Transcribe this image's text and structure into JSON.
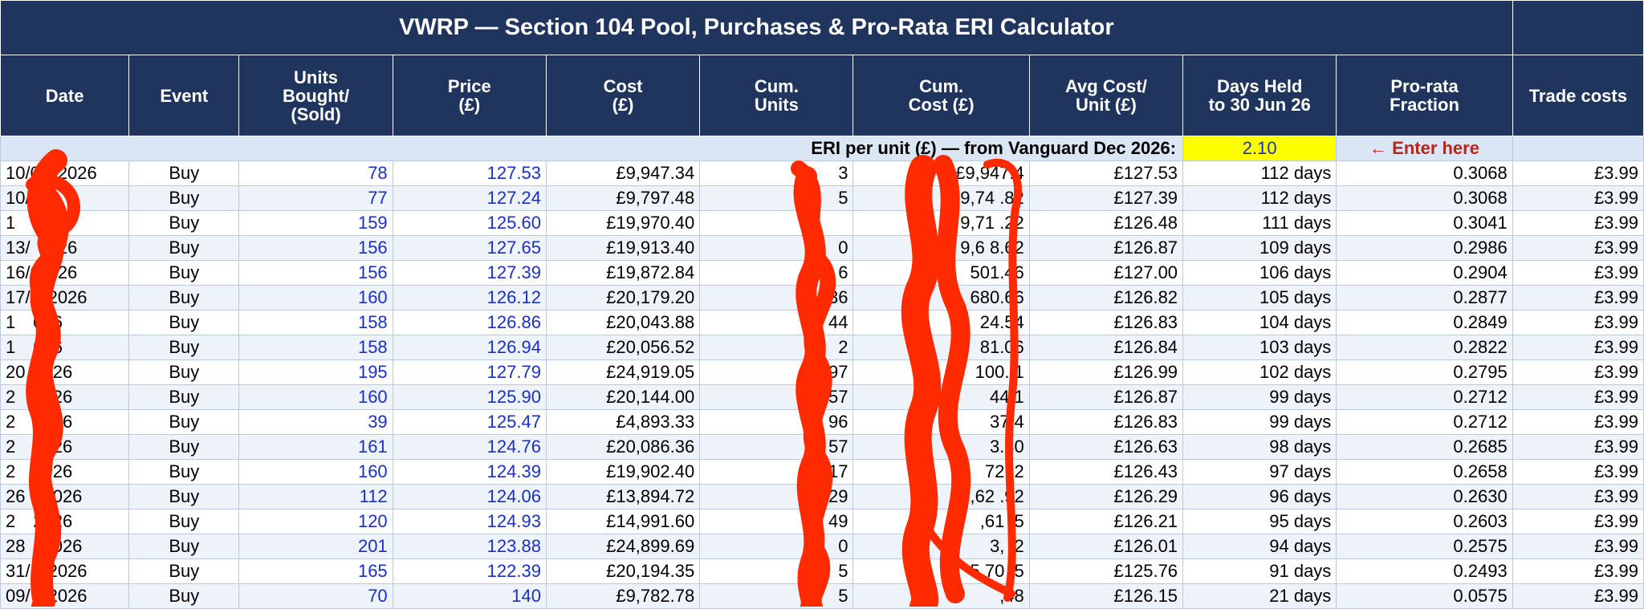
{
  "title": "VWRP — Section 104 Pool, Purchases & Pro-Rata ERI Calculator",
  "headers": [
    "Date",
    "Event",
    "Units\nBought/\n(Sold)",
    "Price\n(£)",
    "Cost\n(£)",
    "Cum.\nUnits",
    "Cum.\nCost (£)",
    "Avg Cost/\nUnit (£)",
    "Days Held\nto 30 Jun 26",
    "Pro-rata\nFraction",
    "Trade costs"
  ],
  "eri": {
    "label": "ERI per unit (£) — from Vanguard Dec 2026:",
    "value": "2.10",
    "hint": "← Enter here"
  },
  "rows": [
    {
      "date": "10/0",
      "date_tail": "2026",
      "event": "Buy",
      "units": "78",
      "price": "127.53",
      "cost": "£9,947.34",
      "cum_units": "3",
      "cum_cost": "£9,947.4",
      "avg": "£127.53",
      "days": "112 days",
      "frac": "0.3068",
      "trade": "£3.99"
    },
    {
      "date": "10/",
      "date_tail": "6",
      "event": "Buy",
      "units": "77",
      "price": "127.24",
      "cost": "£9,797.48",
      "cum_units": "5",
      "cum_cost": "9,74 .82",
      "avg": "£127.39",
      "days": "112 days",
      "frac": "0.3068",
      "trade": "£3.99"
    },
    {
      "date": "1",
      "date_tail": "026",
      "event": "Buy",
      "units": "159",
      "price": "125.60",
      "cost": "£19,970.40",
      "cum_units": "",
      "cum_cost": "9,71 .22",
      "avg": "£126.48",
      "days": "111 days",
      "frac": "0.3041",
      "trade": "£3.99"
    },
    {
      "date": "13/",
      "date_tail": "026",
      "event": "Buy",
      "units": "156",
      "price": "127.65",
      "cost": "£19,913.40",
      "cum_units": "0",
      "cum_cost": "9,6 8.62",
      "avg": "£126.87",
      "days": "109 days",
      "frac": "0.2986",
      "trade": "£3.99"
    },
    {
      "date": "16/0",
      "date_tail": "26",
      "event": "Buy",
      "units": "156",
      "price": "127.39",
      "cost": "£19,872.84",
      "cum_units": "6",
      "cum_cost": "501.46",
      "avg": "£127.00",
      "days": "106 days",
      "frac": "0.2904",
      "trade": "£3.99"
    },
    {
      "date": "17/",
      "date_tail": "2026",
      "event": "Buy",
      "units": "160",
      "price": "126.12",
      "cost": "£20,179.20",
      "cum_units": "36",
      "cum_cost": "680.66",
      "avg": "£126.82",
      "days": "105 days",
      "frac": "0.2877",
      "trade": "£3.99"
    },
    {
      "date": "1",
      "date_tail": "026",
      "event": "Buy",
      "units": "158",
      "price": "126.86",
      "cost": "£20,043.88",
      "cum_units": "44",
      "cum_cost": "24.54",
      "avg": "£126.83",
      "days": "104 days",
      "frac": "0.2849",
      "trade": "£3.99"
    },
    {
      "date": "1",
      "date_tail": "026",
      "event": "Buy",
      "units": "158",
      "price": "126.94",
      "cost": "£20,056.52",
      "cum_units": "2",
      "cum_cost": "81.06",
      "avg": "£126.84",
      "days": "103 days",
      "frac": "0.2822",
      "trade": "£3.99"
    },
    {
      "date": "20",
      "date_tail": "026",
      "event": "Buy",
      "units": "195",
      "price": "127.79",
      "cost": "£24,919.05",
      "cum_units": "97",
      "cum_cost": "100. 1",
      "avg": "£126.99",
      "days": "102 days",
      "frac": "0.2795",
      "trade": "£3.99"
    },
    {
      "date": "2",
      "date_tail": "2026",
      "event": "Buy",
      "units": "160",
      "price": "125.90",
      "cost": "£20,144.00",
      "cum_units": "57",
      "cum_cost": "44.1",
      "avg": "£126.87",
      "days": "99 days",
      "frac": "0.2712",
      "trade": "£3.99"
    },
    {
      "date": "2",
      "date_tail": "2026",
      "event": "Buy",
      "units": "39",
      "price": "125.47",
      "cost": "£4,893.33",
      "cum_units": "96",
      "cum_cost": "37.4",
      "avg": "£126.83",
      "days": "99 days",
      "frac": "0.2712",
      "trade": "£3.99"
    },
    {
      "date": "2",
      "date_tail": "2026",
      "event": "Buy",
      "units": "161",
      "price": "124.76",
      "cost": "£20,086.36",
      "cum_units": "57",
      "cum_cost": "3.80",
      "avg": "£126.63",
      "days": "98 days",
      "frac": "0.2685",
      "trade": "£3.99"
    },
    {
      "date": "2",
      "date_tail": "2026",
      "event": "Buy",
      "units": "160",
      "price": "124.39",
      "cost": "£19,902.40",
      "cum_units": "17",
      "cum_cost": "72 .2",
      "avg": "£126.43",
      "days": "97 days",
      "frac": "0.2658",
      "trade": "£3.99"
    },
    {
      "date": "26",
      "date_tail": "2026",
      "event": "Buy",
      "units": "112",
      "price": "124.06",
      "cost": "£13,894.72",
      "cum_units": "29",
      "cum_cost": ",62 .92",
      "avg": "£126.29",
      "days": "96 days",
      "frac": "0.2630",
      "trade": "£3.99"
    },
    {
      "date": "2",
      "date_tail": "2026",
      "event": "Buy",
      "units": "120",
      "price": "124.93",
      "cost": "£14,991.60",
      "cum_units": "49",
      "cum_cost": ",61 .5",
      "avg": "£126.21",
      "days": "95 days",
      "frac": "0.2603",
      "trade": "£3.99"
    },
    {
      "date": "28",
      "date_tail": "2026",
      "event": "Buy",
      "units": "201",
      "price": "123.88",
      "cost": "£24,899.69",
      "cum_units": "0",
      "cum_cost": "3, .2",
      "avg": "£126.01",
      "days": "94 days",
      "frac": "0.2575",
      "trade": "£3.99"
    },
    {
      "date": "31/",
      "date_tail": "2026",
      "event": "Buy",
      "units": "165",
      "price": "122.39",
      "cost": "£20,194.35",
      "cum_units": "5",
      "cum_cost": "5,70 .5",
      "avg": "£125.76",
      "days": "91 days",
      "frac": "0.2493",
      "trade": "£3.99"
    },
    {
      "date": "09/",
      "date_tail": "2026",
      "event": "Buy",
      "units": "70",
      "price": "140",
      "cost": "£9,782.78",
      "cum_units": "5",
      "cum_cost": ",48",
      "avg": "£126.15",
      "days": "21 days",
      "frac": "0.0575",
      "trade": "£3.99"
    }
  ],
  "colors": {
    "header_bg": "#1f355e",
    "header_text": "#ffffff",
    "input_text": "#1a2fc9",
    "eri_highlight": "#ffff00",
    "hint_text": "#b3271c",
    "redaction": "#ff2a00"
  }
}
